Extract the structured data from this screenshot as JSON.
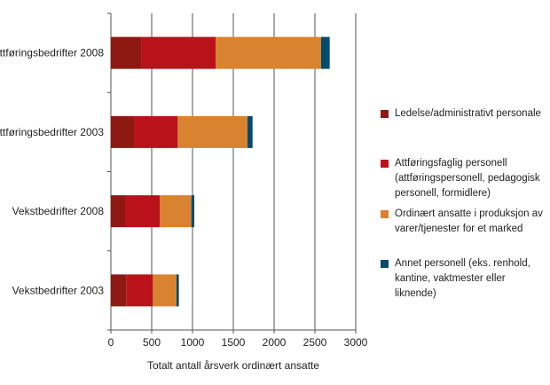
{
  "chart_data": {
    "type": "bar",
    "orientation": "horizontal",
    "stacked": true,
    "categories": [
      "Attføringsbedrifter 2008",
      "Attføringsbedrifter 2003",
      "Vekstbedrifter 2008",
      "Vekstbedrifter 2003"
    ],
    "series": [
      {
        "name": "Ledelse/administrativt personale",
        "color": "#8e1812",
        "values": [
          370,
          283,
          174,
          188
        ]
      },
      {
        "name": "Attføringsfaglig personell (attføringspersonell, pedagogisk personell, formidlere)",
        "color": "#b9121b",
        "values": [
          913,
          536,
          424,
          327
        ]
      },
      {
        "name": "Ordinært ansatte i produksjon av varer/tjenester for et marked",
        "color": "#d98330",
        "values": [
          1293,
          855,
          388,
          289
        ]
      },
      {
        "name": "Annet personell (eks. renhold, kantine, vaktmester eller liknende)",
        "color": "#004b6e",
        "values": [
          105,
          62,
          36,
          29
        ]
      }
    ],
    "xlabel": "Totalt antall årsverk ordinært ansatte",
    "xlim": [
      0,
      3000
    ],
    "xticks": [
      "0",
      "500",
      "1000",
      "1500",
      "2000",
      "2500",
      "3000"
    ],
    "grid": true,
    "legend": "right"
  }
}
